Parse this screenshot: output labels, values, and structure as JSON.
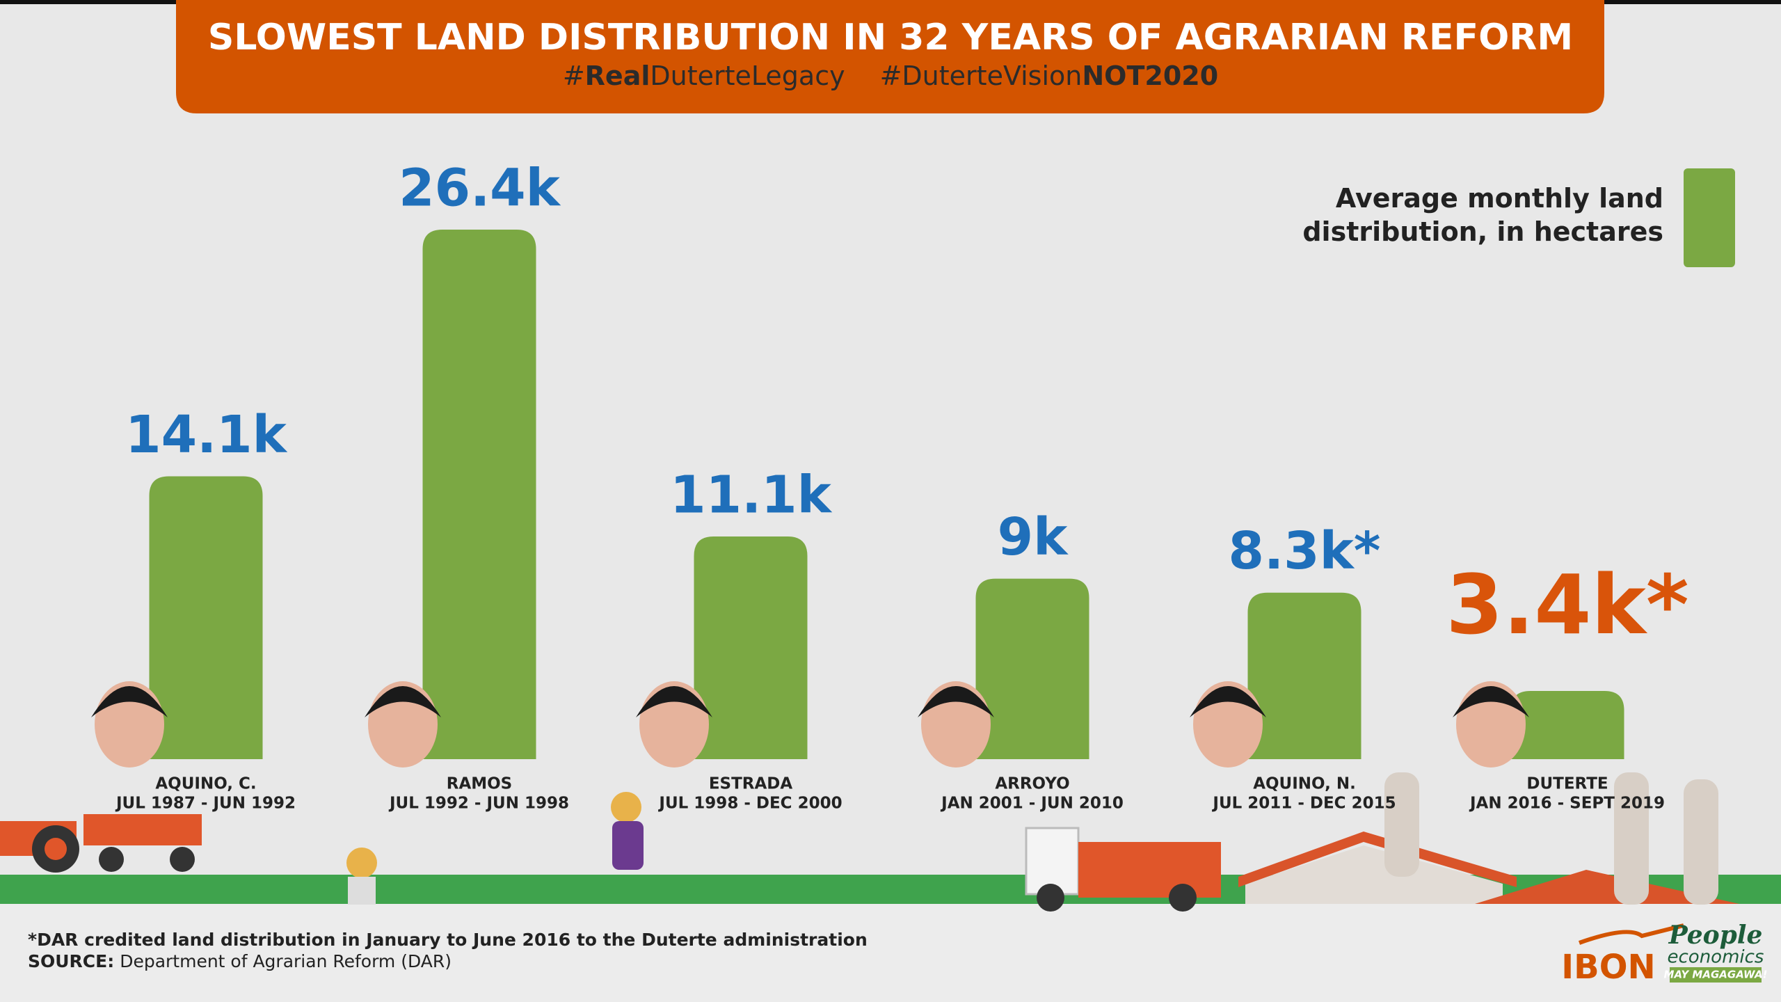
{
  "chart_data": {
    "type": "bar",
    "title": "SLOWEST LAND DISTRIBUTION IN 32 YEARS OF AGRARIAN REFORM",
    "hashtags": [
      [
        {
          "text": "#",
          "bold": false
        },
        {
          "text": "Real",
          "bold": true
        },
        {
          "text": "DuterteLegacy",
          "bold": false
        }
      ],
      [
        {
          "text": "#DuterteVision",
          "bold": false
        },
        {
          "text": "NOT2020",
          "bold": true
        }
      ]
    ],
    "categories": [
      "AQUINO, C.",
      "RAMOS",
      "ESTRADA",
      "ARROYO",
      "AQUINO, N.",
      "DUTERTE"
    ],
    "periods": [
      "JUL 1987 - JUN 1992",
      "JUL 1992 - JUN 1998",
      "JUL 1998 - DEC 2000",
      "JAN 2001 - JUN 2010",
      "JUL 2011 - DEC 2015",
      "JAN 2016 - SEPT 2019"
    ],
    "series": [
      {
        "name": "Average monthly land distribution, in hectares",
        "color": "#7ba843",
        "values": [
          14100,
          26400,
          11100,
          9000,
          8300,
          3400
        ],
        "value_labels": [
          "14.1k",
          "26.4k",
          "11.1k",
          "9k",
          "8.3k*",
          "3.4k*"
        ],
        "value_label_colors": [
          "#1f6fba",
          "#1f6fba",
          "#1f6fba",
          "#1f6fba",
          "#1f6fba",
          "#d9540a"
        ]
      }
    ],
    "legend_position": "top-right",
    "footnote": "*DAR credited land distribution in January to June 2016 to the Duterte administration",
    "source_label": "SOURCE:",
    "source": "Department of Agrarian Reform (DAR)",
    "logos": {
      "ibon": "IBON",
      "people": "People",
      "economics": "economics",
      "tagline": "MAY MAGAGAWA!"
    }
  }
}
